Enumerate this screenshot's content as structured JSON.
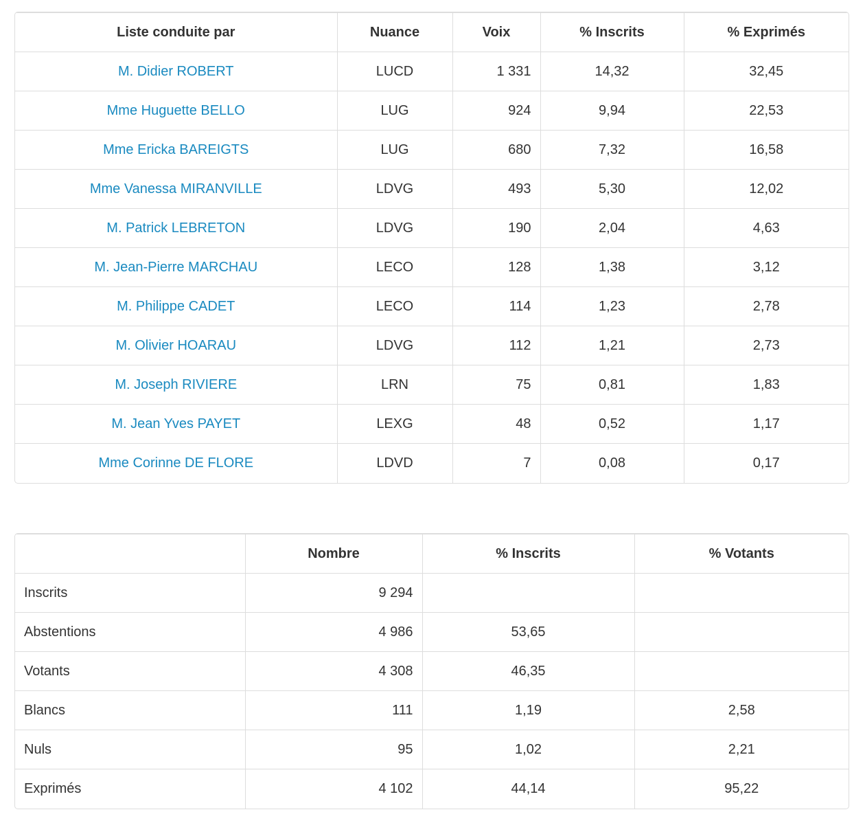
{
  "results_table": {
    "headers": [
      "Liste conduite par",
      "Nuance",
      "Voix",
      "% Inscrits",
      "% Exprimés"
    ],
    "rows": [
      [
        "M. Didier ROBERT",
        "LUCD",
        "1 331",
        "14,32",
        "32,45"
      ],
      [
        "Mme Huguette BELLO",
        "LUG",
        "924",
        "9,94",
        "22,53"
      ],
      [
        "Mme Ericka BAREIGTS",
        "LUG",
        "680",
        "7,32",
        "16,58"
      ],
      [
        "Mme Vanessa MIRANVILLE",
        "LDVG",
        "493",
        "5,30",
        "12,02"
      ],
      [
        "M. Patrick LEBRETON",
        "LDVG",
        "190",
        "2,04",
        "4,63"
      ],
      [
        "M. Jean-Pierre MARCHAU",
        "LECO",
        "128",
        "1,38",
        "3,12"
      ],
      [
        "M. Philippe CADET",
        "LECO",
        "114",
        "1,23",
        "2,78"
      ],
      [
        "M. Olivier HOARAU",
        "LDVG",
        "112",
        "1,21",
        "2,73"
      ],
      [
        "M. Joseph RIVIERE",
        "LRN",
        "75",
        "0,81",
        "1,83"
      ],
      [
        "M. Jean Yves PAYET",
        "LEXG",
        "48",
        "0,52",
        "1,17"
      ],
      [
        "Mme Corinne DE FLORE",
        "LDVD",
        "7",
        "0,08",
        "0,17"
      ]
    ]
  },
  "participation_table": {
    "headers": [
      null,
      "Nombre",
      "% Inscrits",
      "% Votants"
    ],
    "rows": [
      [
        "Inscrits",
        "9 294",
        null,
        null
      ],
      [
        "Abstentions",
        "4 986",
        "53,65",
        null
      ],
      [
        "Votants",
        "4 308",
        "46,35",
        null
      ],
      [
        "Blancs",
        "111",
        "1,19",
        "2,58"
      ],
      [
        "Nuls",
        "95",
        "1,02",
        "2,21"
      ],
      [
        "Exprimés",
        "4 102",
        "44,14",
        "95,22"
      ]
    ]
  }
}
